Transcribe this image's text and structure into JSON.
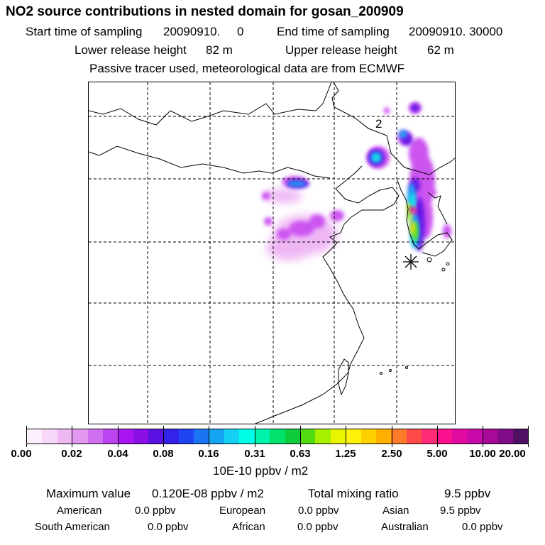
{
  "title": "NO2 source contributions in nested domain for gosan_200909",
  "sampling": {
    "start_label": "Start time of sampling",
    "start_value": "20090910.     0",
    "end_label": "End time of sampling",
    "end_value": "20090910. 30000"
  },
  "release": {
    "lower_label": "Lower release height",
    "lower_value": "82 m",
    "upper_label": "Upper release height",
    "upper_value": "62 m"
  },
  "note": "Passive tracer used, meteorological data are from ECMWF",
  "map": {
    "release_label": "2",
    "marker_symbol": "asterisk"
  },
  "colorbar": {
    "colors": [
      "#fdf0fd",
      "#f8d8f8",
      "#f0b8f2",
      "#e499f0",
      "#d070ee",
      "#bb44f0",
      "#a815f0",
      "#8a10e6",
      "#5a12e2",
      "#3323e8",
      "#1f44f2",
      "#1a74f4",
      "#15a4f2",
      "#14d0f2",
      "#00ffe6",
      "#00f3aa",
      "#00e26a",
      "#0ecc3c",
      "#52dc10",
      "#a6f000",
      "#e8f400",
      "#fff20a",
      "#ffd000",
      "#ffb000",
      "#ff7a2a",
      "#ff4a4a",
      "#ff2a78",
      "#f8108e",
      "#e00aa0",
      "#c80aa8",
      "#a80a98",
      "#800c88",
      "#501062"
    ],
    "tick_labels": [
      "0.00",
      "0.02",
      "0.04",
      "0.08",
      "0.16",
      "0.31",
      "0.63",
      "1.25",
      "2.50",
      "5.00",
      "10.00",
      "20.00"
    ],
    "unit_label": "10E-10 ppbv / m2"
  },
  "summary": {
    "max_label": "Maximum value",
    "max_value": "0.120E-08 ppbv / m2",
    "total_label": "Total mixing ratio",
    "total_value": "9.5 ppbv"
  },
  "regions": [
    {
      "name": "American",
      "value": "0.0 ppbv"
    },
    {
      "name": "European",
      "value": "0.0 ppbv"
    },
    {
      "name": "Asian",
      "value": "9.5 ppbv"
    },
    {
      "name": "South American",
      "value": "0.0 ppbv"
    },
    {
      "name": "African",
      "value": "0.0 ppbv"
    },
    {
      "name": "Australian",
      "value": "0.0 ppbv"
    }
  ]
}
